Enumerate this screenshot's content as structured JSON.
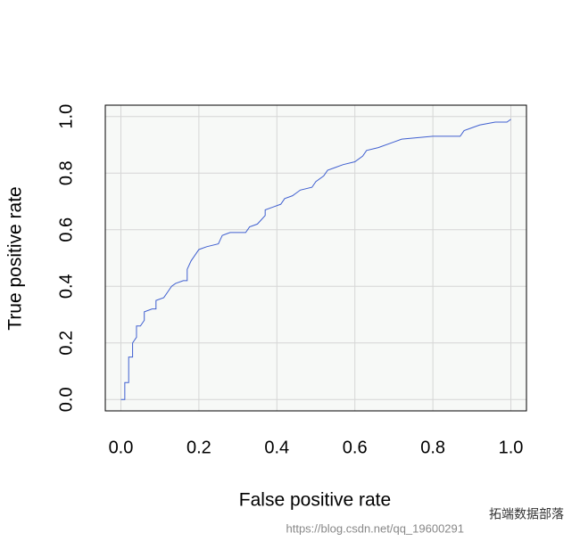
{
  "chart_data": {
    "type": "line",
    "xlabel": "False positive rate",
    "ylabel": "True positive rate",
    "x": [
      0.0,
      0.01,
      0.01,
      0.02,
      0.02,
      0.03,
      0.03,
      0.04,
      0.04,
      0.05,
      0.06,
      0.06,
      0.08,
      0.09,
      0.09,
      0.11,
      0.12,
      0.13,
      0.14,
      0.16,
      0.17,
      0.17,
      0.18,
      0.19,
      0.2,
      0.22,
      0.25,
      0.26,
      0.28,
      0.32,
      0.33,
      0.35,
      0.37,
      0.37,
      0.39,
      0.41,
      0.42,
      0.44,
      0.46,
      0.49,
      0.5,
      0.52,
      0.53,
      0.55,
      0.57,
      0.6,
      0.62,
      0.63,
      0.66,
      0.7,
      0.72,
      0.8,
      0.87,
      0.88,
      0.9,
      0.92,
      0.96,
      0.99,
      1.0
    ],
    "series": [
      {
        "color": "#3f5fd0",
        "values": [
          0.0,
          0.0,
          0.06,
          0.06,
          0.15,
          0.15,
          0.2,
          0.22,
          0.26,
          0.26,
          0.28,
          0.31,
          0.32,
          0.32,
          0.35,
          0.36,
          0.38,
          0.4,
          0.41,
          0.42,
          0.42,
          0.46,
          0.49,
          0.51,
          0.53,
          0.54,
          0.55,
          0.58,
          0.59,
          0.59,
          0.61,
          0.62,
          0.65,
          0.67,
          0.68,
          0.69,
          0.71,
          0.72,
          0.74,
          0.75,
          0.77,
          0.79,
          0.81,
          0.82,
          0.83,
          0.84,
          0.86,
          0.88,
          0.89,
          0.91,
          0.92,
          0.93,
          0.93,
          0.95,
          0.96,
          0.97,
          0.98,
          0.98,
          0.99
        ]
      }
    ],
    "xlim": [
      -0.04,
      1.04
    ],
    "ylim": [
      -0.04,
      1.04
    ],
    "xticks": [
      {
        "value": 0,
        "label": "0.0"
      },
      0.2,
      0.4,
      0.6,
      0.8,
      {
        "value": 1,
        "label": "1.0"
      }
    ],
    "yticks": [
      {
        "value": 0,
        "label": "0.0"
      },
      0.2,
      0.4,
      0.6,
      0.8,
      {
        "value": 1,
        "label": "1.0"
      }
    ],
    "grid": true,
    "background": "#f7f9f7",
    "watermark": [
      "https://blog.csdn.net/qq_19600291",
      "拓端数据部落"
    ]
  }
}
